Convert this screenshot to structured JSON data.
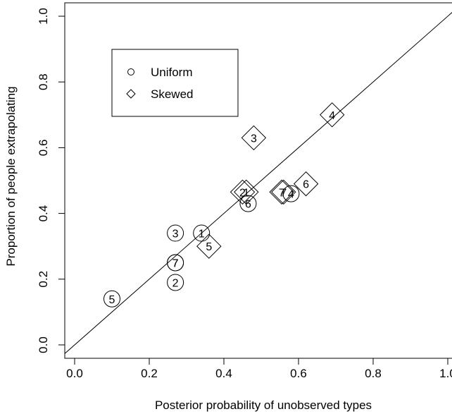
{
  "chart_data": {
    "type": "scatter",
    "xlabel": "Posterior probability of unobserved types",
    "ylabel": "Proportion of people extrapolating",
    "xlim": [
      0,
      1
    ],
    "ylim": [
      0,
      1
    ],
    "x_ticks": [
      "0.0",
      "0.2",
      "0.4",
      "0.6",
      "0.8",
      "1.0"
    ],
    "y_ticks": [
      "0.0",
      "0.2",
      "0.4",
      "0.6",
      "0.8",
      "1.0"
    ],
    "reference_line": "y = x",
    "legend": {
      "position": "top-left",
      "entries": [
        {
          "label": "Uniform",
          "marker": "circle"
        },
        {
          "label": "Skewed",
          "marker": "diamond"
        }
      ]
    },
    "series": [
      {
        "name": "Uniform",
        "marker": "circle",
        "points": [
          {
            "label": "5",
            "x": 0.1,
            "y": 0.14
          },
          {
            "label": "2",
            "x": 0.27,
            "y": 0.19
          },
          {
            "label": "7",
            "x": 0.27,
            "y": 0.25
          },
          {
            "label": "7",
            "x": 0.27,
            "y": 0.25
          },
          {
            "label": "3",
            "x": 0.27,
            "y": 0.34
          },
          {
            "label": "1",
            "x": 0.34,
            "y": 0.34
          },
          {
            "label": "6",
            "x": 0.465,
            "y": 0.43
          },
          {
            "label": "4",
            "x": 0.58,
            "y": 0.46
          }
        ]
      },
      {
        "name": "Skewed",
        "marker": "diamond",
        "points": [
          {
            "label": "5",
            "x": 0.36,
            "y": 0.3
          },
          {
            "label": "2",
            "x": 0.45,
            "y": 0.465
          },
          {
            "label": "1",
            "x": 0.46,
            "y": 0.465
          },
          {
            "label": "3",
            "x": 0.48,
            "y": 0.63
          },
          {
            "label": "7",
            "x": 0.555,
            "y": 0.465
          },
          {
            "label": "7",
            "x": 0.56,
            "y": 0.465
          },
          {
            "label": "6",
            "x": 0.62,
            "y": 0.49
          },
          {
            "label": "4",
            "x": 0.69,
            "y": 0.7
          }
        ]
      }
    ]
  }
}
